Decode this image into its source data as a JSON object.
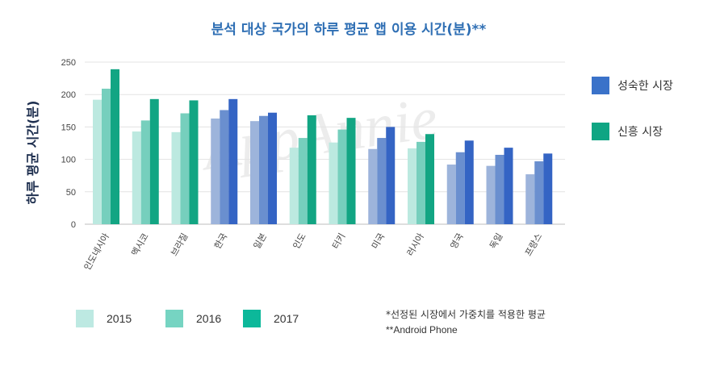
{
  "chart_data": {
    "type": "bar",
    "title": "분석 대상 국가의 하루 평균 앱 이용 시간(분)**",
    "ylabel": "하루 평균 시간(분)",
    "xlabel": "",
    "ylim": [
      0,
      250
    ],
    "yticks": [
      0,
      50,
      100,
      150,
      200,
      250
    ],
    "grid": true,
    "watermark": "AppAnnie",
    "categories": [
      "인도네시아",
      "멕시코",
      "브라질",
      "한국",
      "일본",
      "인도",
      "터키",
      "미국",
      "러시아",
      "영국",
      "독일",
      "프랑스"
    ],
    "market_type": [
      "emerging",
      "emerging",
      "emerging",
      "mature",
      "mature",
      "emerging",
      "emerging",
      "mature",
      "emerging",
      "mature",
      "mature",
      "mature"
    ],
    "series": [
      {
        "name": "2015",
        "values": [
          192,
          143,
          142,
          163,
          159,
          118,
          126,
          116,
          117,
          92,
          90,
          77
        ]
      },
      {
        "name": "2016",
        "values": [
          209,
          160,
          171,
          176,
          167,
          133,
          146,
          133,
          127,
          111,
          107,
          97
        ]
      },
      {
        "name": "2017",
        "values": [
          239,
          193,
          191,
          193,
          172,
          168,
          164,
          150,
          139,
          129,
          118,
          109
        ]
      }
    ],
    "colors": {
      "mature": [
        "#9db4db",
        "#6a8fcf",
        "#3464c4"
      ],
      "emerging": [
        "#bce9e0",
        "#76cfbd",
        "#12a583"
      ]
    },
    "market_legend": [
      {
        "label": "성숙한 시장",
        "color": "#3a72c9"
      },
      {
        "label": "신흥 시장",
        "color": "#0fa583"
      }
    ],
    "year_legend": [
      {
        "label": "2015",
        "color": "#bde9e2"
      },
      {
        "label": "2016",
        "color": "#76d4c2"
      },
      {
        "label": "2017",
        "color": "#0cb89a"
      }
    ],
    "footnotes": [
      "*선정된 시장에서 가중치를 적용한 평균",
      "**Android Phone"
    ]
  }
}
